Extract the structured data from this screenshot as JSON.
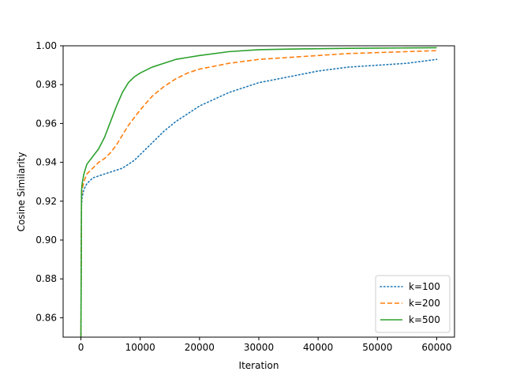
{
  "chart_data": {
    "type": "line",
    "title": "",
    "xlabel": "Iteration",
    "ylabel": "Cosine Similarity",
    "xlim": [
      -3000,
      63000
    ],
    "ylim": [
      0.85,
      1.0
    ],
    "xticks": [
      0,
      10000,
      20000,
      30000,
      40000,
      50000,
      60000
    ],
    "xtick_labels": [
      "0",
      "10000",
      "20000",
      "30000",
      "40000",
      "50000",
      "60000"
    ],
    "yticks": [
      0.86,
      0.88,
      0.9,
      0.92,
      0.94,
      0.96,
      0.98,
      1.0
    ],
    "ytick_labels": [
      "0.86",
      "0.88",
      "0.90",
      "0.92",
      "0.94",
      "0.96",
      "0.98",
      "1.00"
    ],
    "grid": false,
    "legend_position": "lower-right",
    "series": [
      {
        "name": "k=100",
        "color": "#1f77b4",
        "linestyle": "dotted",
        "x": [
          0,
          100,
          200,
          500,
          1000,
          2000,
          3000,
          4000,
          5000,
          6000,
          7000,
          8000,
          9000,
          10000,
          12000,
          14000,
          16000,
          18000,
          20000,
          25000,
          30000,
          35000,
          40000,
          45000,
          50000,
          55000,
          60000
        ],
        "y": [
          0.85,
          0.918,
          0.922,
          0.926,
          0.929,
          0.932,
          0.933,
          0.934,
          0.935,
          0.936,
          0.937,
          0.939,
          0.941,
          0.944,
          0.95,
          0.956,
          0.961,
          0.965,
          0.969,
          0.976,
          0.981,
          0.984,
          0.987,
          0.989,
          0.99,
          0.991,
          0.993
        ]
      },
      {
        "name": "k=200",
        "color": "#ff7f0e",
        "linestyle": "dashed",
        "x": [
          0,
          100,
          200,
          500,
          1000,
          2000,
          3000,
          4000,
          5000,
          6000,
          7000,
          8000,
          9000,
          10000,
          12000,
          14000,
          16000,
          18000,
          20000,
          25000,
          30000,
          35000,
          40000,
          45000,
          50000,
          55000,
          60000
        ],
        "y": [
          0.85,
          0.922,
          0.926,
          0.93,
          0.934,
          0.937,
          0.94,
          0.942,
          0.945,
          0.949,
          0.954,
          0.959,
          0.963,
          0.967,
          0.974,
          0.979,
          0.983,
          0.986,
          0.988,
          0.991,
          0.993,
          0.994,
          0.995,
          0.996,
          0.9965,
          0.997,
          0.9975
        ]
      },
      {
        "name": "k=500",
        "color": "#2ca02c",
        "linestyle": "solid",
        "x": [
          0,
          100,
          200,
          500,
          1000,
          2000,
          3000,
          4000,
          5000,
          6000,
          7000,
          8000,
          9000,
          10000,
          12000,
          14000,
          16000,
          18000,
          20000,
          25000,
          30000,
          35000,
          40000,
          45000,
          50000,
          55000,
          60000
        ],
        "y": [
          0.85,
          0.925,
          0.929,
          0.934,
          0.939,
          0.943,
          0.947,
          0.953,
          0.961,
          0.969,
          0.976,
          0.981,
          0.984,
          0.986,
          0.989,
          0.991,
          0.993,
          0.994,
          0.995,
          0.997,
          0.998,
          0.9983,
          0.9985,
          0.9987,
          0.9988,
          0.9989,
          0.999
        ]
      }
    ]
  }
}
